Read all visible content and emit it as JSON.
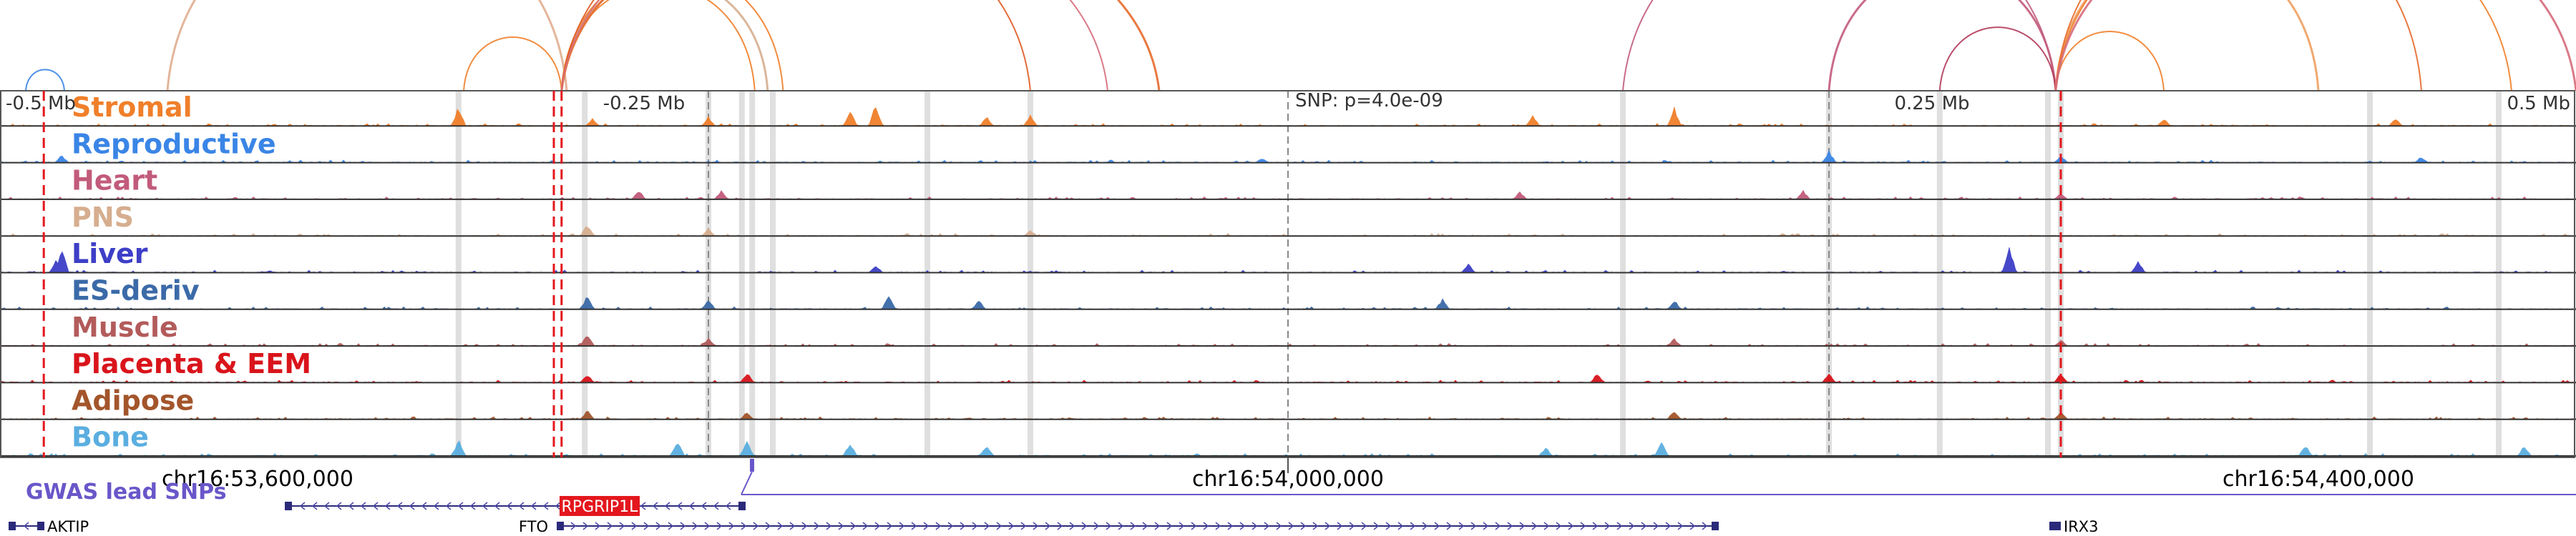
{
  "axis": {
    "ticks": [
      {
        "label": "-0.5 Mb",
        "pos": 53500000
      },
      {
        "label": "-0.25 Mb",
        "pos": 53750000
      },
      {
        "label": "0.25 Mb",
        "pos": 54250000
      },
      {
        "label": "0.5 Mb",
        "pos": 54500000
      }
    ],
    "snp_label": "SNP: p=4.0e-09",
    "snp_pos": 54000000
  },
  "coordinates": [
    {
      "label": "chr16:53,600,000",
      "pos": 53600000
    },
    {
      "label": "chr16:54,000,000",
      "pos": 54000000
    },
    {
      "label": "chr16:54,400,000",
      "pos": 54400000
    }
  ],
  "chart_data": {
    "type": "area",
    "x_range": [
      53500000,
      54500000
    ],
    "series": [
      {
        "name": "Stromal",
        "color": "#f07f2a",
        "peaks": [
          [
            53678000,
            0.65
          ],
          [
            53730000,
            0.25
          ],
          [
            53775000,
            0.3
          ],
          [
            53830000,
            0.55
          ],
          [
            53840000,
            0.75
          ],
          [
            53883000,
            0.3
          ],
          [
            53900000,
            0.35
          ],
          [
            54095000,
            0.35
          ],
          [
            54150000,
            0.6
          ],
          [
            54340000,
            0.25
          ],
          [
            54430000,
            0.25
          ]
        ]
      },
      {
        "name": "Reproductive",
        "color": "#3a85e6",
        "peaks": [
          [
            53524000,
            0.25
          ],
          [
            53990000,
            0.15
          ],
          [
            54210000,
            0.4
          ],
          [
            54300000,
            0.25
          ],
          [
            54440000,
            0.2
          ]
        ]
      },
      {
        "name": "Heart",
        "color": "#c25b7b",
        "peaks": [
          [
            53748000,
            0.3
          ],
          [
            53780000,
            0.3
          ],
          [
            54090000,
            0.25
          ],
          [
            54200000,
            0.3
          ],
          [
            54300000,
            0.2
          ]
        ]
      },
      {
        "name": "PNS",
        "color": "#d6ae8f",
        "peaks": [
          [
            53728000,
            0.4
          ],
          [
            53775000,
            0.25
          ],
          [
            53900000,
            0.2
          ]
        ]
      },
      {
        "name": "Liver",
        "color": "#3d3fc7",
        "peaks": [
          [
            53524000,
            0.85
          ],
          [
            53522000,
            0.45
          ],
          [
            53840000,
            0.25
          ],
          [
            54070000,
            0.3
          ],
          [
            54280000,
            0.95
          ],
          [
            54330000,
            0.4
          ]
        ]
      },
      {
        "name": "ES-deriv",
        "color": "#3b6aa8",
        "peaks": [
          [
            53728000,
            0.45
          ],
          [
            53775000,
            0.35
          ],
          [
            53845000,
            0.45
          ],
          [
            53880000,
            0.3
          ],
          [
            54060000,
            0.35
          ],
          [
            54150000,
            0.3
          ]
        ]
      },
      {
        "name": "Muscle",
        "color": "#b35b5b",
        "peaks": [
          [
            53728000,
            0.4
          ],
          [
            53775000,
            0.25
          ],
          [
            54150000,
            0.25
          ],
          [
            54300000,
            0.2
          ]
        ]
      },
      {
        "name": "Placenta & EEM",
        "color": "#d9141b",
        "peaks": [
          [
            53728000,
            0.3
          ],
          [
            53790000,
            0.35
          ],
          [
            54120000,
            0.3
          ],
          [
            54210000,
            0.3
          ],
          [
            54300000,
            0.3
          ]
        ]
      },
      {
        "name": "Adipose",
        "color": "#a3552b",
        "peaks": [
          [
            53728000,
            0.3
          ],
          [
            53790000,
            0.25
          ],
          [
            54150000,
            0.3
          ],
          [
            54300000,
            0.25
          ]
        ]
      },
      {
        "name": "Bone",
        "color": "#5aaee0",
        "peaks": [
          [
            53678000,
            0.55
          ],
          [
            53763000,
            0.55
          ],
          [
            53790000,
            0.5
          ],
          [
            53830000,
            0.45
          ],
          [
            53883000,
            0.4
          ],
          [
            54100000,
            0.3
          ],
          [
            54145000,
            0.5
          ],
          [
            54395000,
            0.35
          ],
          [
            54480000,
            0.35
          ]
        ]
      }
    ],
    "highlight_regions": [
      53678000,
      53727000,
      53775000,
      53788000,
      53792000,
      53800000,
      53860000,
      53900000,
      54130000,
      54210000,
      54253000,
      54295000,
      54300000,
      54420000,
      54470000
    ],
    "snp_marks": [
      53517000,
      53715000,
      53718000,
      54300000
    ],
    "arcs": [
      {
        "from": 53565000,
        "to": 53720000,
        "color": "#e0ad8f"
      },
      {
        "from": 53680000,
        "to": 53718000,
        "color": "#f07f2a"
      },
      {
        "from": 53718000,
        "to": 53793000,
        "color": "#f07f2a"
      },
      {
        "from": 53718000,
        "to": 53798000,
        "color": "#d6ae8f"
      },
      {
        "from": 53718000,
        "to": 53804000,
        "color": "#f07f2a"
      },
      {
        "from": 53718000,
        "to": 53900000,
        "color": "#e05a23"
      },
      {
        "from": 53718000,
        "to": 53950000,
        "color": "#e56a2b"
      },
      {
        "from": 53718000,
        "to": 53930000,
        "color": "#d66a7a"
      },
      {
        "from": 54130000,
        "to": 54298000,
        "color": "#c25b7b"
      },
      {
        "from": 54210000,
        "to": 54298000,
        "color": "#c25b7b"
      },
      {
        "from": 54253000,
        "to": 54298000,
        "color": "#b33a5a"
      },
      {
        "from": 54298000,
        "to": 54340000,
        "color": "#f07f2a"
      },
      {
        "from": 54298000,
        "to": 54400000,
        "color": "#f0a060"
      },
      {
        "from": 54298000,
        "to": 54440000,
        "color": "#e56a2b"
      },
      {
        "from": 54298000,
        "to": 54475000,
        "color": "#f07f2a"
      },
      {
        "from": 54298000,
        "to": 54500000,
        "color": "#d66a7a"
      },
      {
        "from": 53510000,
        "to": 53525000,
        "color": "#3a85e6"
      }
    ]
  },
  "gwas_label": "GWAS lead SNPs",
  "genes": [
    {
      "name": "RPGRIP1L",
      "start": 53630000,
      "end": 53770000,
      "strand": "-",
      "row": 0,
      "highlight": true
    },
    {
      "name": "AKTIP",
      "start": 53500000,
      "end": 53505000,
      "strand": "-",
      "row": 1,
      "highlight": false
    },
    {
      "name": "FTO",
      "start": 53740000,
      "end": 54150000,
      "strand": "+",
      "row": 1,
      "highlight": false
    },
    {
      "name": "IRX3",
      "start": 54296000,
      "end": 54300000,
      "strand": "-",
      "row": 1,
      "highlight": false
    }
  ]
}
